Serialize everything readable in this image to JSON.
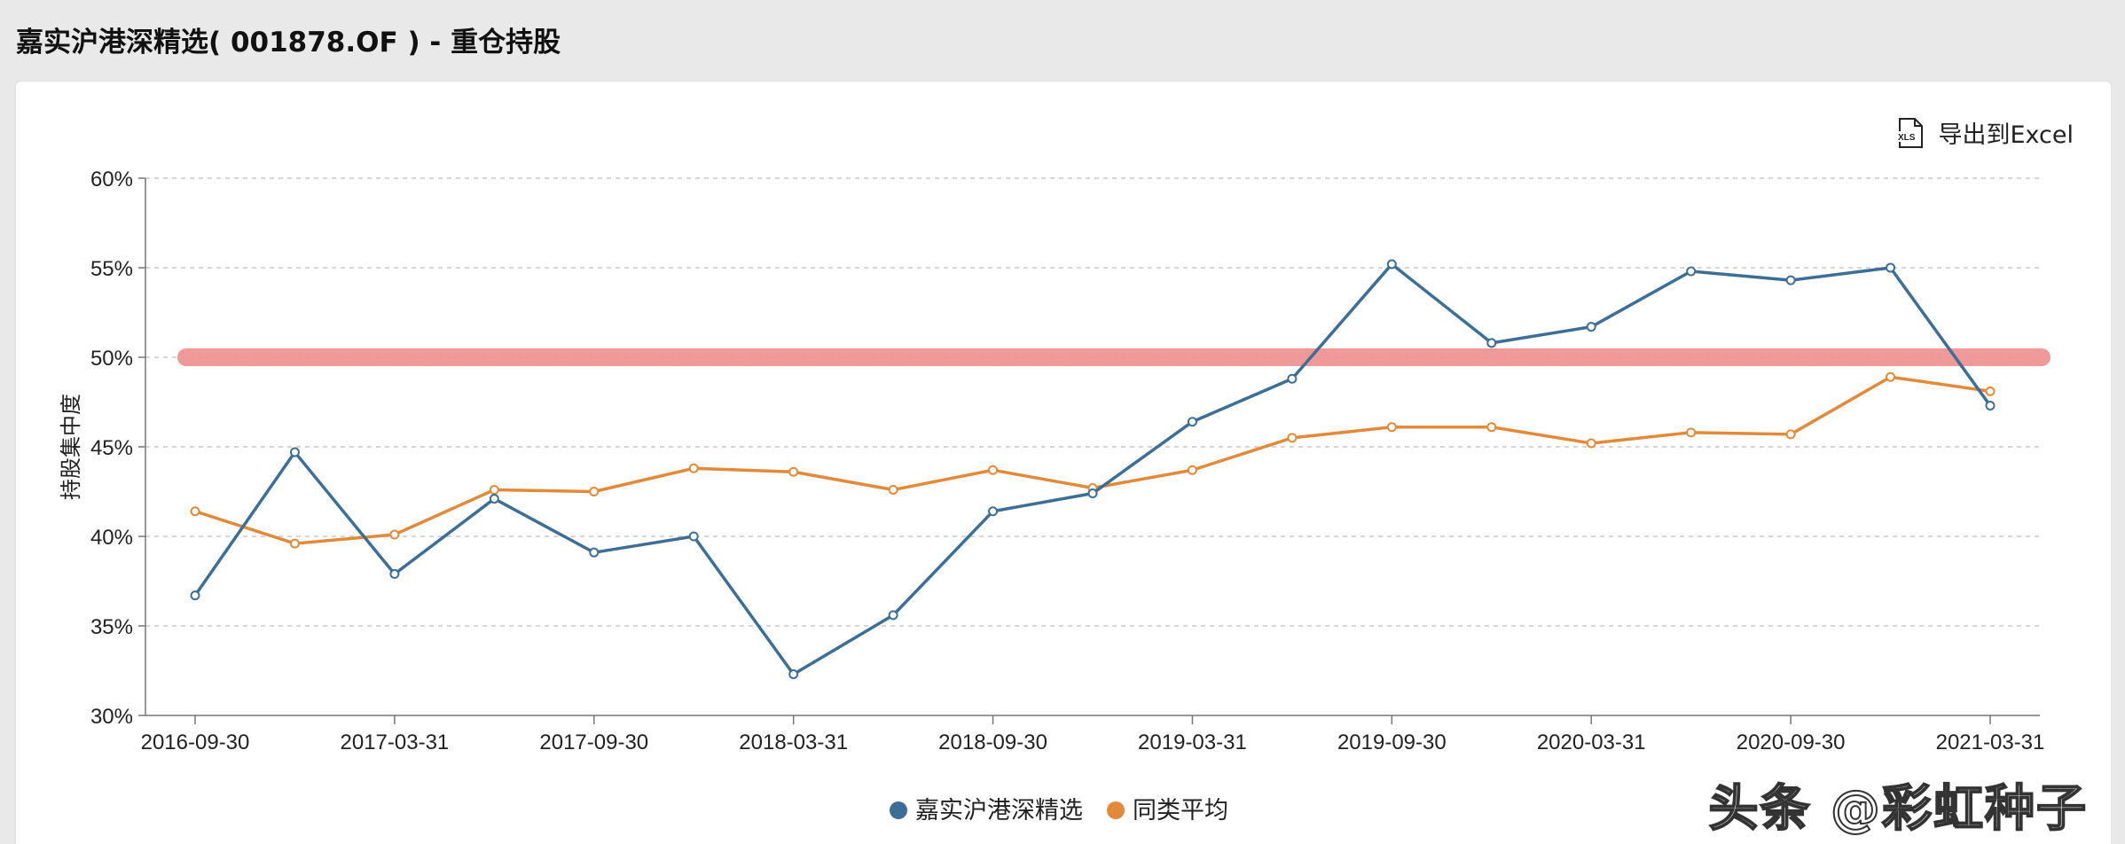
{
  "header": {
    "title": "嘉实沪港深精选( 001878.OF ) - 重仓持股"
  },
  "toolbar": {
    "export_label": "导出到Excel",
    "export_icon": "xls-file-icon",
    "export_icon_text": "XLS"
  },
  "watermark": {
    "text": "头条 @彩虹种子"
  },
  "colors": {
    "fund": "#3d6e96",
    "peer": "#e08a3a",
    "threshold": "#ee8f8f",
    "grid": "#c9c9c9",
    "axis": "#777777"
  },
  "chart_data": {
    "type": "line",
    "ylabel": "持股集中度",
    "xlabel": "",
    "ylim": [
      30,
      60
    ],
    "yticks": [
      "30%",
      "35%",
      "40%",
      "45%",
      "50%",
      "55%",
      "60%"
    ],
    "ytick_values": [
      30,
      35,
      40,
      45,
      50,
      55,
      60
    ],
    "x": [
      "2016-09-30",
      "2016-12-31",
      "2017-03-31",
      "2017-06-30",
      "2017-09-30",
      "2017-12-31",
      "2018-03-31",
      "2018-06-30",
      "2018-09-30",
      "2018-12-31",
      "2019-03-31",
      "2019-06-30",
      "2019-09-30",
      "2019-12-31",
      "2020-03-31",
      "2020-06-30",
      "2020-09-30",
      "2020-12-31",
      "2021-03-31"
    ],
    "xtick_labels": [
      "2016-09-30",
      "2017-03-31",
      "2017-09-30",
      "2018-03-31",
      "2018-09-30",
      "2019-03-31",
      "2019-09-30",
      "2020-03-31",
      "2020-09-30",
      "2021-03-31"
    ],
    "grid": "horizontal dashed",
    "legend_position": "bottom-center",
    "series": [
      {
        "name": "嘉实沪港深精选",
        "color": "#3d6e96",
        "values": [
          36.7,
          44.7,
          37.9,
          42.1,
          39.1,
          40.0,
          32.3,
          35.6,
          41.4,
          42.4,
          46.4,
          48.8,
          55.2,
          50.8,
          51.7,
          54.8,
          54.3,
          55.0,
          47.3
        ]
      },
      {
        "name": "同类平均",
        "color": "#e08a3a",
        "values": [
          41.4,
          39.6,
          40.1,
          42.6,
          42.5,
          43.8,
          43.6,
          42.6,
          43.7,
          42.7,
          43.7,
          45.5,
          46.1,
          46.1,
          45.2,
          45.8,
          45.7,
          48.9,
          48.1
        ]
      }
    ],
    "annotations": [
      {
        "type": "horizontal-line",
        "y": 50,
        "color": "#ee8f8f"
      }
    ]
  }
}
